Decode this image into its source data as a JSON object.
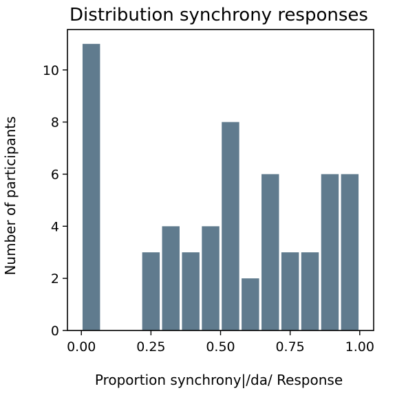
{
  "chart_data": {
    "type": "bar",
    "title": "Distribution synchrony responses",
    "xlabel": "Proportion synchrony|/da/ Response",
    "ylabel": "Number of participants",
    "xlim": [
      -0.05,
      1.05
    ],
    "ylim": [
      0,
      11.55
    ],
    "xticks": [
      0.0,
      0.25,
      0.5,
      0.75,
      1.0
    ],
    "xtick_labels": [
      "0.00",
      "0.25",
      "0.50",
      "0.75",
      "1.00"
    ],
    "yticks": [
      0,
      2,
      4,
      6,
      8,
      10
    ],
    "ytick_labels": [
      "0",
      "2",
      "4",
      "6",
      "8",
      "10"
    ],
    "grid": false,
    "bar_color": "#607b8e",
    "bars": [
      {
        "x": 0.0357,
        "value": 11
      },
      {
        "x": 0.1071,
        "value": 0
      },
      {
        "x": 0.1786,
        "value": 0
      },
      {
        "x": 0.25,
        "value": 3
      },
      {
        "x": 0.3214,
        "value": 4
      },
      {
        "x": 0.3929,
        "value": 3
      },
      {
        "x": 0.4643,
        "value": 4
      },
      {
        "x": 0.5357,
        "value": 8
      },
      {
        "x": 0.6071,
        "value": 2
      },
      {
        "x": 0.6786,
        "value": 6
      },
      {
        "x": 0.75,
        "value": 3
      },
      {
        "x": 0.8214,
        "value": 3
      },
      {
        "x": 0.8929,
        "value": 6
      },
      {
        "x": 0.9643,
        "value": 6
      }
    ]
  }
}
